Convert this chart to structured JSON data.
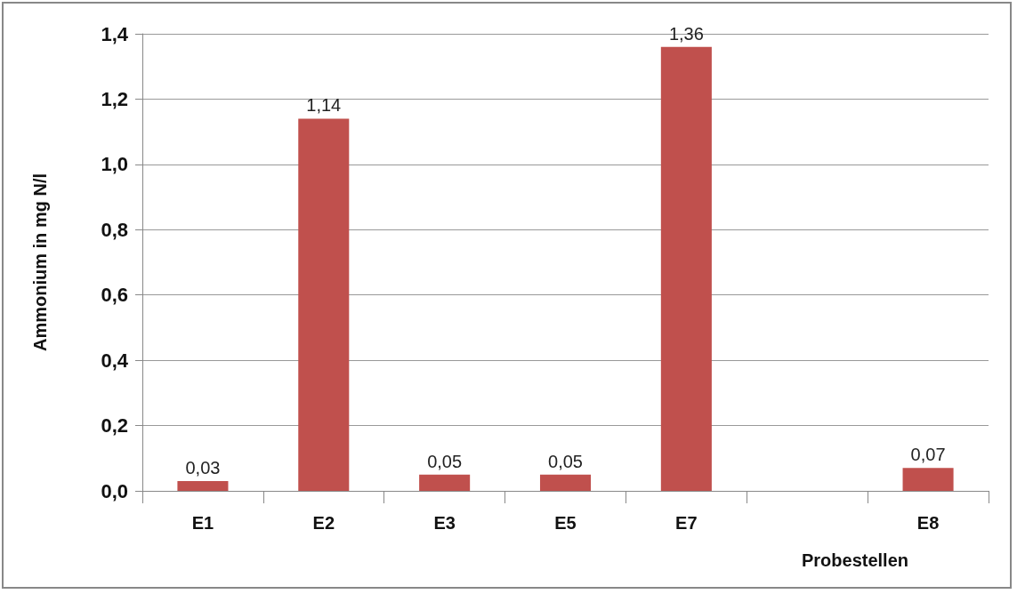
{
  "chart_data": {
    "type": "bar",
    "ylabel": "Ammonium in mg N/l",
    "xlabel": "Probestellen",
    "categories": [
      "E1",
      "E2",
      "E3",
      "E5",
      "E7",
      null,
      "E8"
    ],
    "values": [
      0.03,
      1.14,
      0.05,
      0.05,
      1.36,
      null,
      0.07
    ],
    "value_labels": [
      "0,03",
      "1,14",
      "0,05",
      "0,05",
      "1,36",
      null,
      "0,07"
    ],
    "color": "#c0504d",
    "ylim": [
      0,
      1.4
    ],
    "yticks": [
      {
        "value": 0,
        "label": "0,0"
      },
      {
        "value": 0.2,
        "label": "0,2"
      },
      {
        "value": 0.4,
        "label": "0,4"
      },
      {
        "value": 0.6,
        "label": "0,6"
      },
      {
        "value": 0.8,
        "label": "0,8"
      },
      {
        "value": 1,
        "label": "1,0"
      },
      {
        "value": 1.2,
        "label": "1,2"
      },
      {
        "value": 1.4,
        "label": "1,4"
      }
    ],
    "grid": "y"
  }
}
